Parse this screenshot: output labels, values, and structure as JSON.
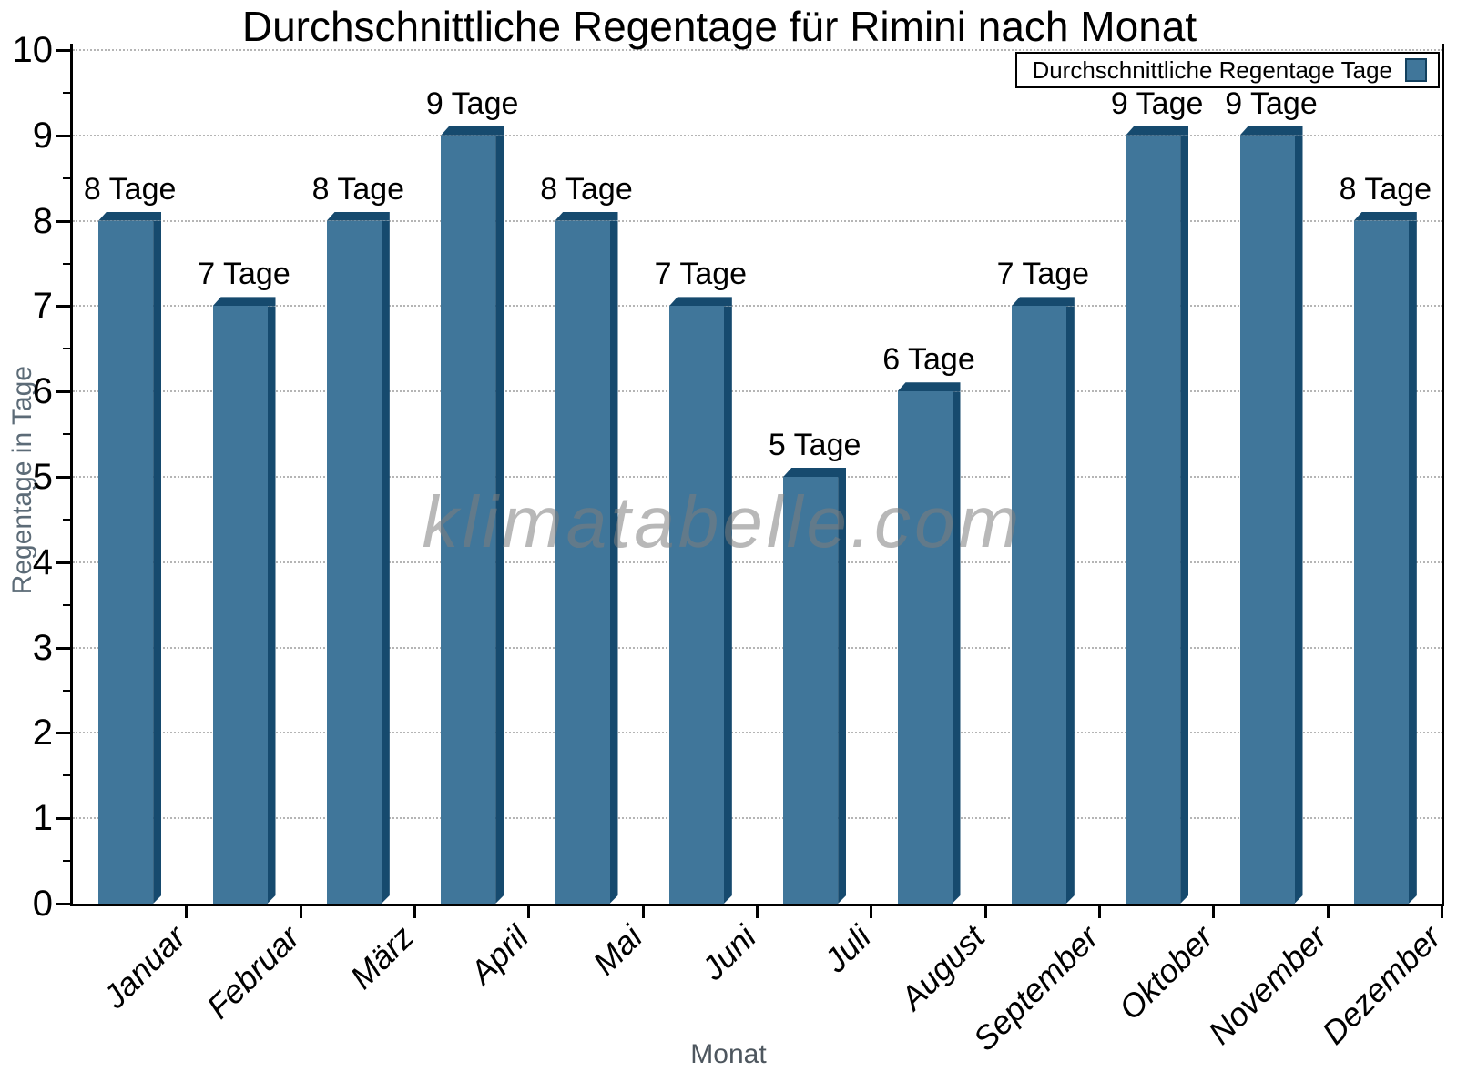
{
  "chart_data": {
    "type": "bar",
    "title": "Durchschnittliche Regentage für Rimini nach Monat",
    "xlabel": "Monat",
    "ylabel": "Regentage in Tage",
    "categories": [
      "Januar",
      "Februar",
      "März",
      "April",
      "Mai",
      "Juni",
      "Juli",
      "August",
      "September",
      "Oktober",
      "November",
      "Dezember"
    ],
    "values": [
      8,
      7,
      8,
      9,
      8,
      7,
      5,
      6,
      7,
      9,
      9,
      8
    ],
    "bar_labels": [
      "8 Tage",
      "7 Tage",
      "8 Tage",
      "9 Tage",
      "8 Tage",
      "7 Tage",
      "5 Tage",
      "6 Tage",
      "7 Tage",
      "9 Tage",
      "9 Tage",
      "8 Tage"
    ],
    "yticks": [
      0,
      1,
      2,
      3,
      4,
      5,
      6,
      7,
      8,
      9,
      10
    ],
    "ylim": [
      0,
      10
    ],
    "minor_tick_step": 0.5,
    "grid": "horizontal-dotted",
    "legend_label": "Durchschnittliche Regentage Tage",
    "legend_position": "top-right",
    "watermark": "klimatabelle.com",
    "colors": {
      "bar_face": "#40769A",
      "bar_dark": "#164A6E",
      "grid": "#b5b5b5",
      "axis": "#000000",
      "axis_title_text": "#5c6b77",
      "watermark_text": "#7d7d7d"
    }
  }
}
